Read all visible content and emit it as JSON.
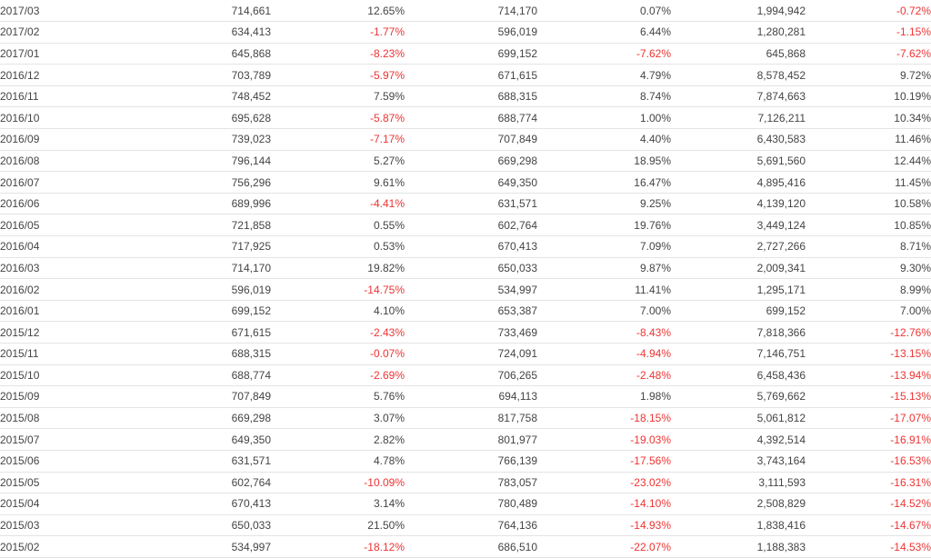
{
  "colors": {
    "text": "#444444",
    "negative": "#ee3333",
    "grid": "#e4e4e4"
  },
  "rows": [
    [
      "2017/03",
      "714,661",
      "12.65%",
      "714,170",
      "0.07%",
      "1,994,942",
      "-0.72%"
    ],
    [
      "2017/02",
      "634,413",
      "-1.77%",
      "596,019",
      "6.44%",
      "1,280,281",
      "-1.15%"
    ],
    [
      "2017/01",
      "645,868",
      "-8.23%",
      "699,152",
      "-7.62%",
      "645,868",
      "-7.62%"
    ],
    [
      "2016/12",
      "703,789",
      "-5.97%",
      "671,615",
      "4.79%",
      "8,578,452",
      "9.72%"
    ],
    [
      "2016/11",
      "748,452",
      "7.59%",
      "688,315",
      "8.74%",
      "7,874,663",
      "10.19%"
    ],
    [
      "2016/10",
      "695,628",
      "-5.87%",
      "688,774",
      "1.00%",
      "7,126,211",
      "10.34%"
    ],
    [
      "2016/09",
      "739,023",
      "-7.17%",
      "707,849",
      "4.40%",
      "6,430,583",
      "11.46%"
    ],
    [
      "2016/08",
      "796,144",
      "5.27%",
      "669,298",
      "18.95%",
      "5,691,560",
      "12.44%"
    ],
    [
      "2016/07",
      "756,296",
      "9.61%",
      "649,350",
      "16.47%",
      "4,895,416",
      "11.45%"
    ],
    [
      "2016/06",
      "689,996",
      "-4.41%",
      "631,571",
      "9.25%",
      "4,139,120",
      "10.58%"
    ],
    [
      "2016/05",
      "721,858",
      "0.55%",
      "602,764",
      "19.76%",
      "3,449,124",
      "10.85%"
    ],
    [
      "2016/04",
      "717,925",
      "0.53%",
      "670,413",
      "7.09%",
      "2,727,266",
      "8.71%"
    ],
    [
      "2016/03",
      "714,170",
      "19.82%",
      "650,033",
      "9.87%",
      "2,009,341",
      "9.30%"
    ],
    [
      "2016/02",
      "596,019",
      "-14.75%",
      "534,997",
      "11.41%",
      "1,295,171",
      "8.99%"
    ],
    [
      "2016/01",
      "699,152",
      "4.10%",
      "653,387",
      "7.00%",
      "699,152",
      "7.00%"
    ],
    [
      "2015/12",
      "671,615",
      "-2.43%",
      "733,469",
      "-8.43%",
      "7,818,366",
      "-12.76%"
    ],
    [
      "2015/11",
      "688,315",
      "-0.07%",
      "724,091",
      "-4.94%",
      "7,146,751",
      "-13.15%"
    ],
    [
      "2015/10",
      "688,774",
      "-2.69%",
      "706,265",
      "-2.48%",
      "6,458,436",
      "-13.94%"
    ],
    [
      "2015/09",
      "707,849",
      "5.76%",
      "694,113",
      "1.98%",
      "5,769,662",
      "-15.13%"
    ],
    [
      "2015/08",
      "669,298",
      "3.07%",
      "817,758",
      "-18.15%",
      "5,061,812",
      "-17.07%"
    ],
    [
      "2015/07",
      "649,350",
      "2.82%",
      "801,977",
      "-19.03%",
      "4,392,514",
      "-16.91%"
    ],
    [
      "2015/06",
      "631,571",
      "4.78%",
      "766,139",
      "-17.56%",
      "3,743,164",
      "-16.53%"
    ],
    [
      "2015/05",
      "602,764",
      "-10.09%",
      "783,057",
      "-23.02%",
      "3,111,593",
      "-16.31%"
    ],
    [
      "2015/04",
      "670,413",
      "3.14%",
      "780,489",
      "-14.10%",
      "2,508,829",
      "-14.52%"
    ],
    [
      "2015/03",
      "650,033",
      "21.50%",
      "764,136",
      "-14.93%",
      "1,838,416",
      "-14.67%"
    ],
    [
      "2015/02",
      "534,997",
      "-18.12%",
      "686,510",
      "-22.07%",
      "1,188,383",
      "-14.53%"
    ]
  ]
}
